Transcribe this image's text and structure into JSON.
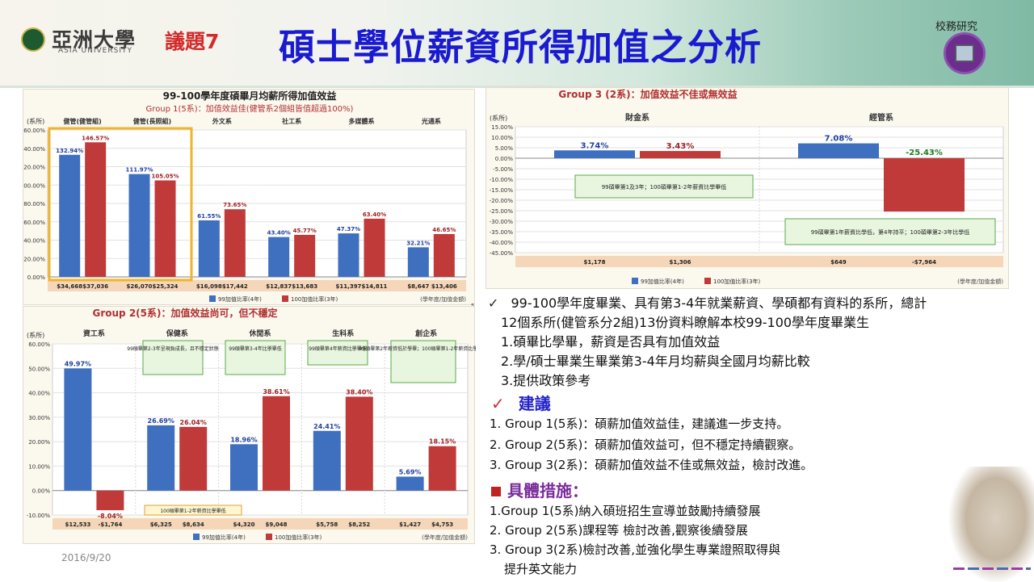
{
  "header": {
    "logo_cn": "亞洲大學",
    "logo_en": "ASIA UNIVERSITY",
    "issue_label": "議題7",
    "title": "碩士學位薪資所得加值之分析",
    "dept_label": "校務研究"
  },
  "footer": {
    "date": "2016/9/20"
  },
  "colors": {
    "blue": "#3f6fbf",
    "red": "#c03a3a",
    "title_blue": "#1a1ad0",
    "issue_red": "#d22b2b",
    "highlight": "#f0b42a"
  },
  "chart_data": [
    {
      "type": "bar",
      "title": "99-100學年度碩畢月均薪所得加值效益",
      "subtitle": "Group 1(5系)：加值效益佳(健管系2個組皆值超過100%)",
      "ylabel": "(系所)",
      "ylim": [
        0,
        160
      ],
      "yticks": [
        "160.00%",
        "140.00%",
        "120.00%",
        "100.00%",
        "80.00%",
        "60.00%",
        "40.00%",
        "20.00%",
        "0.00%"
      ],
      "categories": [
        "健管(健管組)",
        "健管(長照組)",
        "外文系",
        "社工系",
        "多媒體系",
        "光通系"
      ],
      "series": [
        {
          "name": "99加值比率(4年)",
          "values": [
            132.94,
            111.97,
            61.55,
            43.4,
            47.37,
            32.21
          ],
          "labels": [
            "132.94%",
            "111.97%",
            "61.55%",
            "43.40%",
            "47.37%",
            "32.21%"
          ]
        },
        {
          "name": "100加值比率(3年)",
          "values": [
            146.57,
            105.05,
            73.65,
            45.77,
            63.4,
            46.65
          ],
          "labels": [
            "146.57%",
            "105.05%",
            "73.65%",
            "45.77%",
            "63.40%",
            "46.65%"
          ]
        }
      ],
      "amounts": [
        "$34,668",
        "$37,036",
        "$26,070",
        "$25,324",
        "$16,098",
        "$17,442",
        "$12,837",
        "$13,683",
        "$11,397",
        "$14,811",
        "$8,647",
        "$13,406"
      ],
      "amount_note": "(學年度/加值金額)",
      "page_no": "5"
    },
    {
      "type": "bar",
      "title": "Group 3 (2系)：加值效益不佳或無效益",
      "ylabel": "(系所)",
      "ylim": [
        -45,
        15
      ],
      "yticks": [
        "15.00%",
        "10.00%",
        "5.00%",
        "0.00%",
        "-5.00%",
        "-10.00%",
        "-15.00%",
        "-20.00%",
        "-25.00%",
        "-30.00%",
        "-35.00%",
        "-40.00%",
        "-45.00%"
      ],
      "categories": [
        "財金系",
        "經管系"
      ],
      "series": [
        {
          "name": "99加值比率(4年)",
          "values": [
            3.74,
            7.08
          ],
          "labels": [
            "3.74%",
            "7.08%"
          ]
        },
        {
          "name": "100加值比率(3年)",
          "values": [
            3.43,
            -25.43
          ],
          "labels": [
            "3.43%",
            "-25.43%"
          ]
        }
      ],
      "annotations": [
        "99碩畢第1及3年；100碩畢第1-2年薪資比學畢低",
        "99碩畢第1年薪資比學低，第4年持平；100碩畢第2-3年比學低"
      ],
      "amounts": [
        "$1,178",
        "$1,306",
        "$649",
        "-$7,964"
      ],
      "amount_note": "(學年度/加值金額)"
    },
    {
      "type": "bar",
      "title": "Group 2(5系)：加值效益尚可，但不穩定",
      "ylabel": "(系所)",
      "ylim": [
        -10,
        60
      ],
      "yticks": [
        "60.00%",
        "50.00%",
        "40.00%",
        "30.00%",
        "20.00%",
        "10.00%",
        "0.00%",
        "-10.00%"
      ],
      "categories": [
        "資工系",
        "保健系",
        "休閒系",
        "生科系",
        "創企系"
      ],
      "series": [
        {
          "name": "99加值比率(4年)",
          "values": [
            49.97,
            26.69,
            18.96,
            24.41,
            5.69
          ],
          "labels": [
            "49.97%",
            "26.69%",
            "18.96%",
            "24.41%",
            "5.69%"
          ]
        },
        {
          "name": "100加值比率(3年)",
          "values": [
            -8.04,
            26.04,
            38.61,
            38.4,
            18.15
          ],
          "labels": [
            "-8.04%",
            "26.04%",
            "38.61%",
            "38.40%",
            "18.15%"
          ]
        }
      ],
      "annotations": [
        "99碩畢第2-3年呈現負成長，且不穩定狀態",
        "99碩畢第3-4年比學畢低",
        "99碩畢第4年薪資比學畢低",
        "99碩畢第2年薪資低於學畢；100碩畢第1-2年薪資比學畢低",
        "100碩畢第1-2年薪資比學畢低"
      ],
      "amounts": [
        "$12,533",
        "-$1,764",
        "$6,325",
        "$8,634",
        "$4,320",
        "$9,048",
        "$5,758",
        "$8,252",
        "$1,427",
        "$4,753"
      ],
      "amount_note": "(學年度/加值金額)"
    }
  ],
  "text": {
    "intro_check": "✓",
    "intro_line1": "99-100學年度畢業、具有第3-4年就業薪資、學碩都有資料的系所，總計",
    "intro_line2": "12個系所(健管系分2組)13份資料瞭解本校99-100學年度畢業生",
    "items": [
      "1.碩畢比學畢，薪資是否具有加值效益",
      "2.學/碩士畢業生畢業第3-4年月均薪與全國月均薪比較",
      "3.提供政策參考"
    ],
    "suggest_check": "✓",
    "suggest_heading": "建議",
    "suggestions": [
      "1. Group 1(5系)：碩薪加值效益佳，建議進一步支持。",
      "2. Group 2(5系)：碩薪加值效益可，但不穩定持續觀察。",
      "3. Group 3(2系)：碩薪加值效益不佳或無效益，檢討改進。"
    ],
    "measures_heading": "具體措施：",
    "measures": [
      "1.Group 1(5系)納入碩班招生宣導並鼓勵持續發展",
      "2. Group 2(5系)課程等 檢討改善,觀察後續發展",
      "3. Group 3(2系)檢討改善,並強化學生專業證照取得與",
      "提升英文能力"
    ]
  }
}
